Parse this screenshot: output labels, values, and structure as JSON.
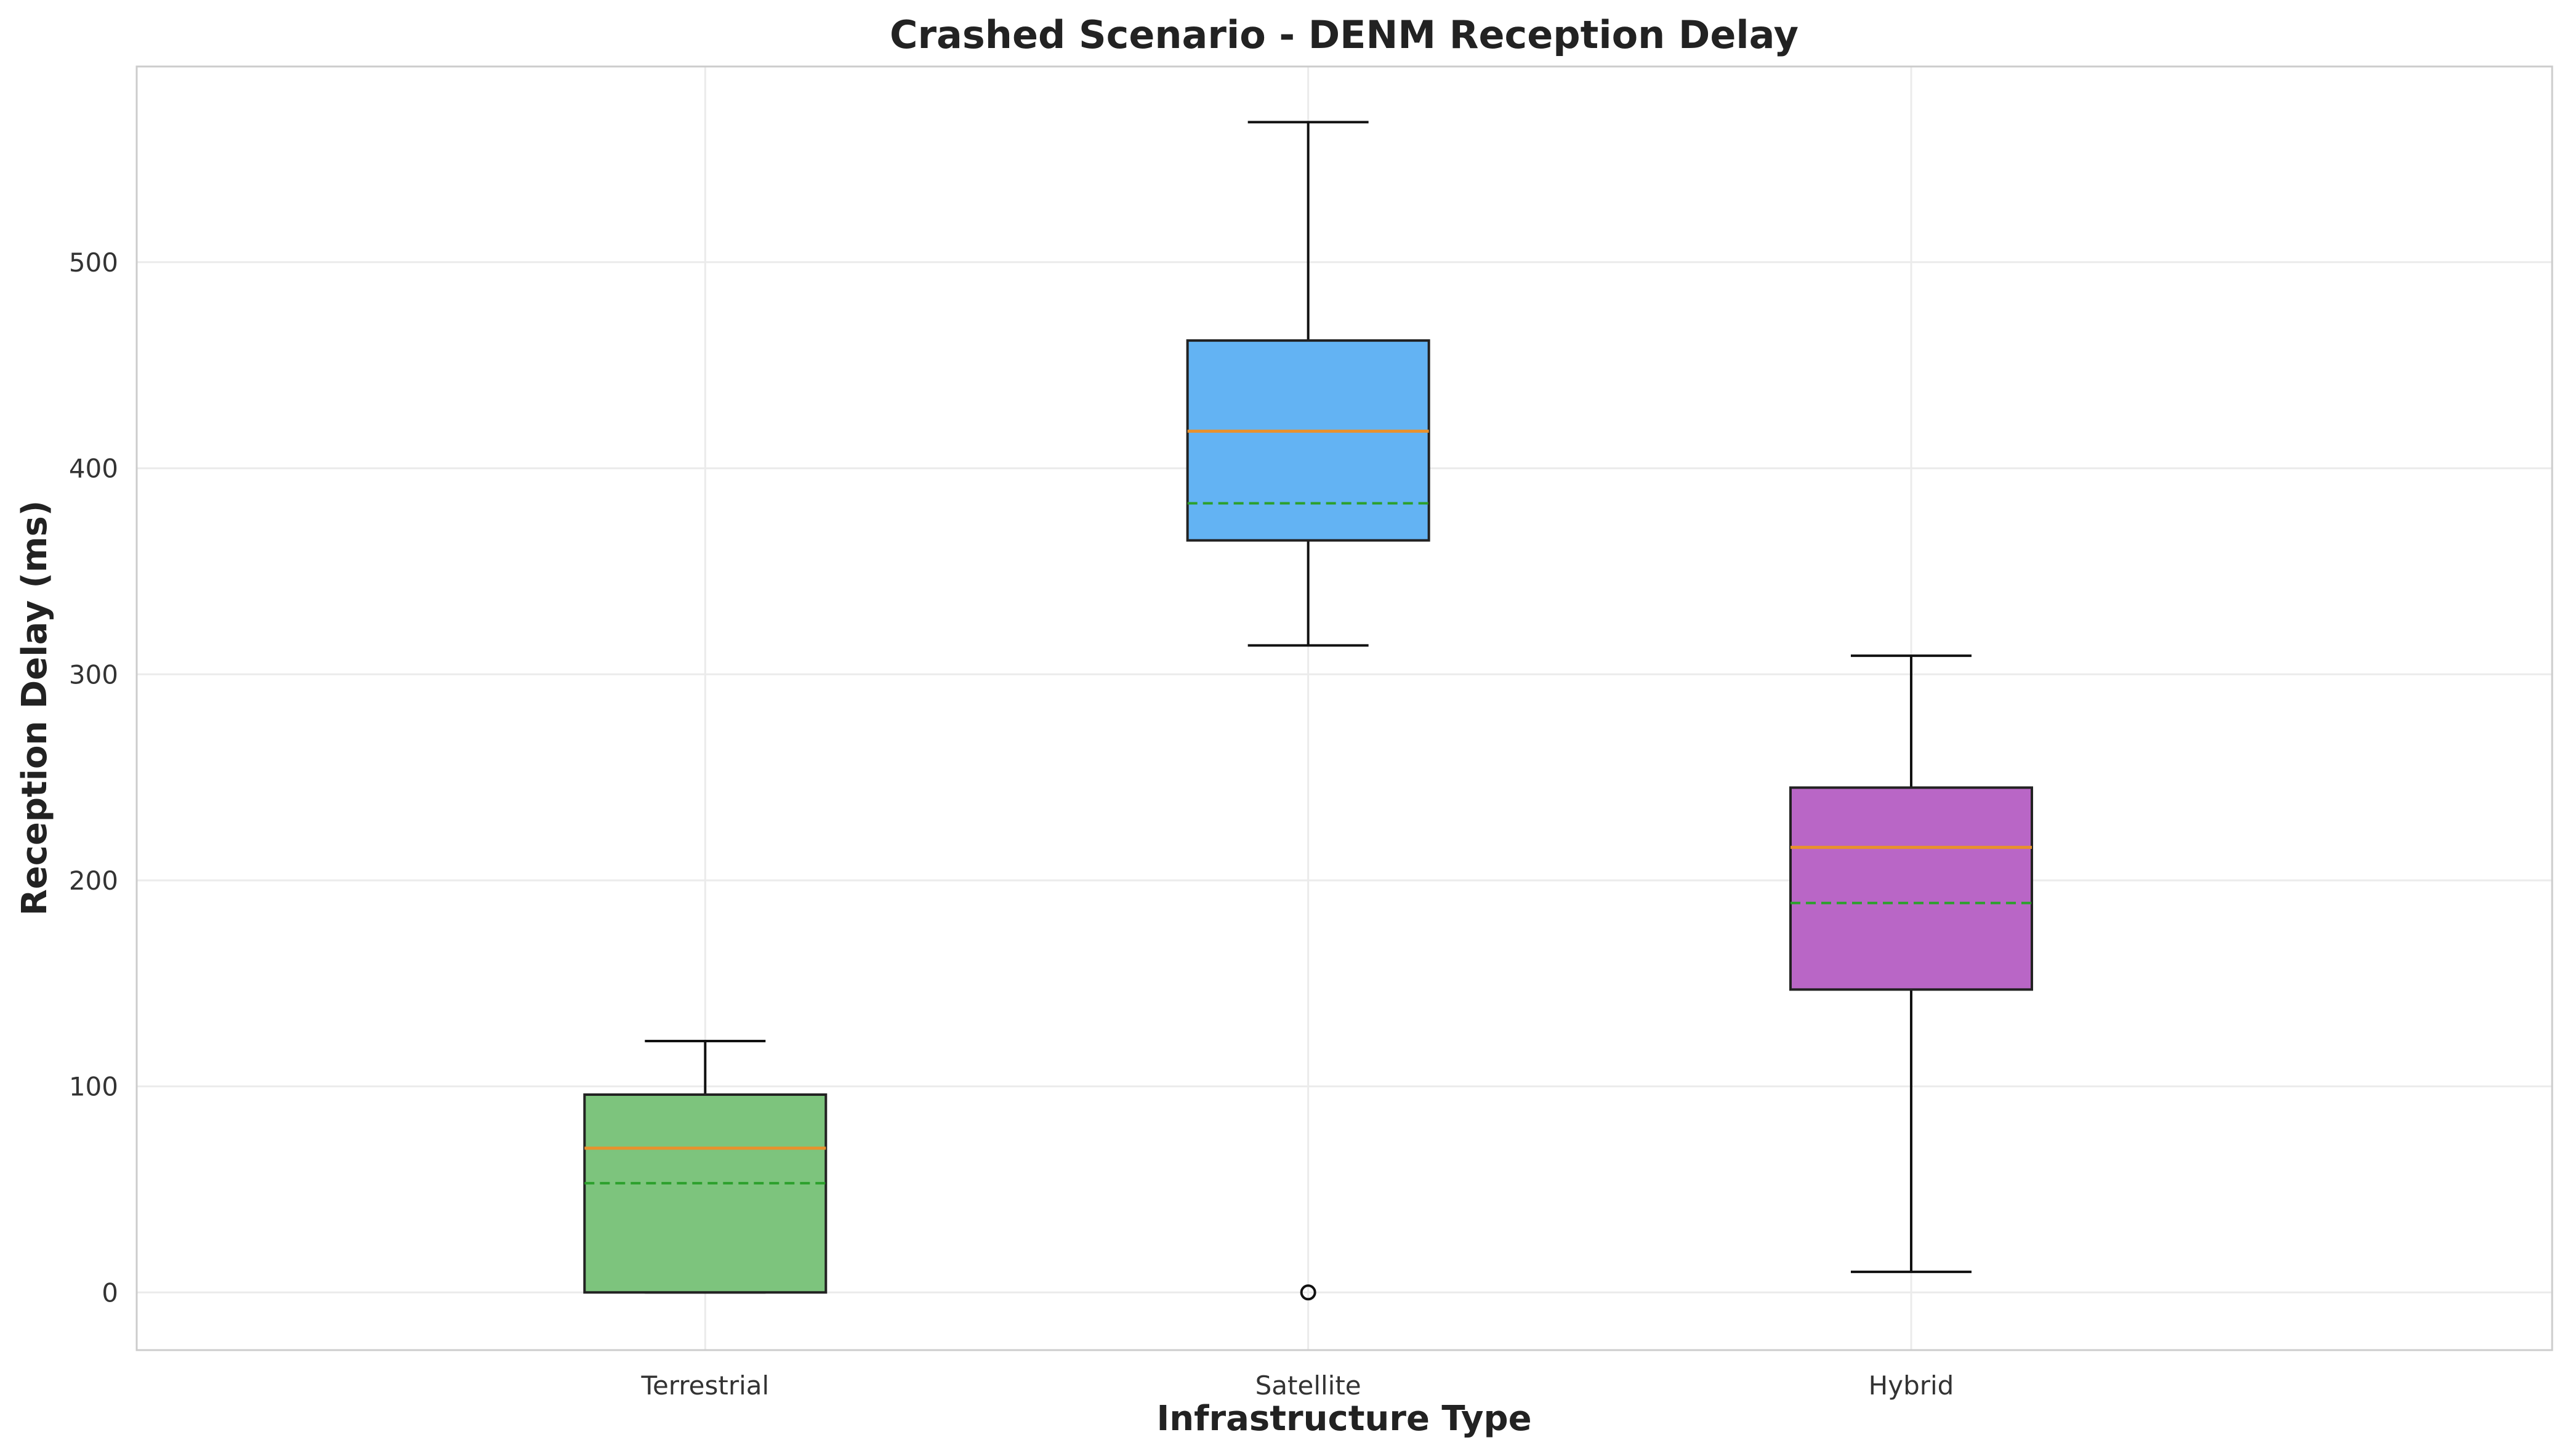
{
  "chart_data": {
    "type": "box",
    "title": "Crashed Scenario - DENM Reception Delay",
    "xlabel": "Infrastructure Type",
    "ylabel": "Reception Delay (ms)",
    "ylim": [
      -28,
      595
    ],
    "yticks": [
      0,
      100,
      200,
      300,
      400,
      500
    ],
    "grid": true,
    "categories": [
      "Terrestrial",
      "Satellite",
      "Hybrid"
    ],
    "boxes": [
      {
        "category": "Terrestrial",
        "whisker_low": 0,
        "q1": 0,
        "median": 70,
        "mean": 53,
        "q3": 96,
        "whisker_high": 122,
        "outliers": [],
        "color": "#7dc47d"
      },
      {
        "category": "Satellite",
        "whisker_low": 314,
        "q1": 365,
        "median": 418,
        "mean": 383,
        "q3": 462,
        "whisker_high": 568,
        "outliers": [
          0
        ],
        "color": "#63b3f3"
      },
      {
        "category": "Hybrid",
        "whisker_low": 10,
        "q1": 147,
        "median": 216,
        "mean": 189,
        "q3": 245,
        "whisker_high": 309,
        "outliers": [],
        "color": "#b966c6"
      }
    ],
    "median_color": "#e8912c",
    "mean_color": "#2ca02c"
  }
}
